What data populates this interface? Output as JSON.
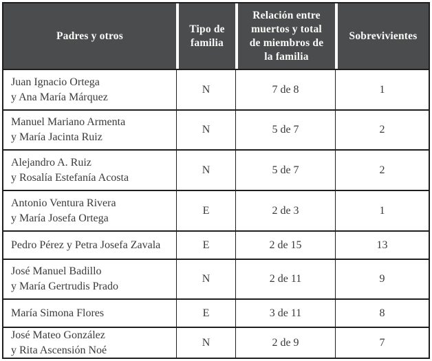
{
  "table": {
    "columns": [
      "Padres y otros",
      "Tipo de\nfamilia",
      "Relación entre\nmuertos y total\nde miembros de\nla familia",
      "Sobrevivientes"
    ],
    "rows": [
      {
        "name": "Juan Ignacio Ortega\ny Ana María Márquez",
        "tipo": "N",
        "relacion": "7 de 8",
        "sobrevivientes": "1"
      },
      {
        "name": "Manuel Mariano Armenta\ny María Jacinta Ruiz",
        "tipo": "N",
        "relacion": "5 de 7",
        "sobrevivientes": "2"
      },
      {
        "name": "Alejandro A. Ruiz\ny Rosalía Estefanía Acosta",
        "tipo": "N",
        "relacion": "5 de 7",
        "sobrevivientes": "2"
      },
      {
        "name": "Antonio Ventura Rivera\ny María Josefa Ortega",
        "tipo": "E",
        "relacion": "2 de 3",
        "sobrevivientes": "1"
      },
      {
        "name": "Pedro Pérez y Petra Josefa Zavala",
        "tipo": "E",
        "relacion": "2 de 15",
        "sobrevivientes": "13"
      },
      {
        "name": "José Manuel Badillo\ny María Gertrudis Prado",
        "tipo": "N",
        "relacion": "2 de 11",
        "sobrevivientes": "9"
      },
      {
        "name": "María Simona Flores",
        "tipo": "E",
        "relacion": "3 de 11",
        "sobrevivientes": "8"
      },
      {
        "name": "José Mateo González\ny Rita Ascensión Noé",
        "tipo": "N",
        "relacion": "2 de 9",
        "sobrevivientes": "7"
      }
    ]
  },
  "colors": {
    "header_bg": "#4b4c4e",
    "header_text": "#fbfbf9",
    "body_text": "#3a3a3c",
    "border": "#1e1e1e",
    "page_bg": "#ffffff"
  }
}
